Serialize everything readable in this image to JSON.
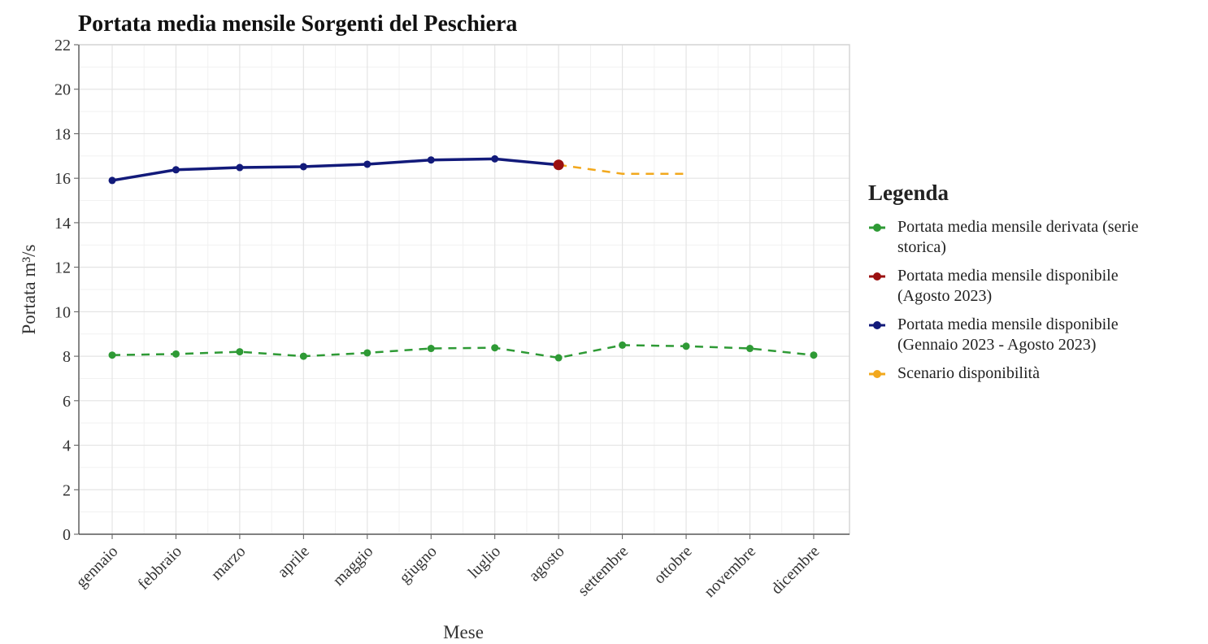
{
  "chart_data": {
    "type": "line",
    "title": "Portata media mensile Sorgenti del Peschiera",
    "x_label": "Mese",
    "y_label": "Portata m³/s",
    "legend_title": "Legenda",
    "categories": [
      "gennaio",
      "febbraio",
      "marzo",
      "aprile",
      "maggio",
      "giugno",
      "luglio",
      "agosto",
      "settembre",
      "ottobre",
      "novembre",
      "dicembre"
    ],
    "series": [
      {
        "name": "Portata media mensile derivata (serie storica)",
        "color": "#2e9a35",
        "dashed": true,
        "markers": true,
        "values": [
          8.05,
          8.1,
          8.2,
          8.0,
          8.15,
          8.35,
          8.38,
          7.93,
          8.5,
          8.45,
          8.35,
          8.05
        ]
      },
      {
        "name": "Portata media mensile disponibile (Agosto 2023)",
        "color": "#9b1010",
        "dashed": false,
        "markers": true,
        "values": [
          null,
          null,
          null,
          null,
          null,
          null,
          null,
          16.6,
          null,
          null,
          null,
          null
        ]
      },
      {
        "name": "Portata media mensile disponibile (Gennaio 2023 - Agosto 2023)",
        "color": "#121a7a",
        "dashed": false,
        "markers": true,
        "values": [
          15.9,
          16.38,
          16.48,
          16.52,
          16.63,
          16.82,
          16.87,
          16.6,
          null,
          null,
          null,
          null
        ]
      },
      {
        "name": "Scenario disponibilità",
        "color": "#f2a81d",
        "dashed": true,
        "markers": false,
        "values": [
          null,
          null,
          null,
          null,
          null,
          null,
          null,
          16.6,
          16.2,
          16.2,
          null,
          null
        ]
      }
    ],
    "ylim": [
      0,
      22
    ],
    "yticks": [
      0,
      2,
      4,
      6,
      8,
      10,
      12,
      14,
      16,
      18,
      20,
      22
    ],
    "grid": true,
    "minor_grid": true,
    "legend": "right"
  }
}
